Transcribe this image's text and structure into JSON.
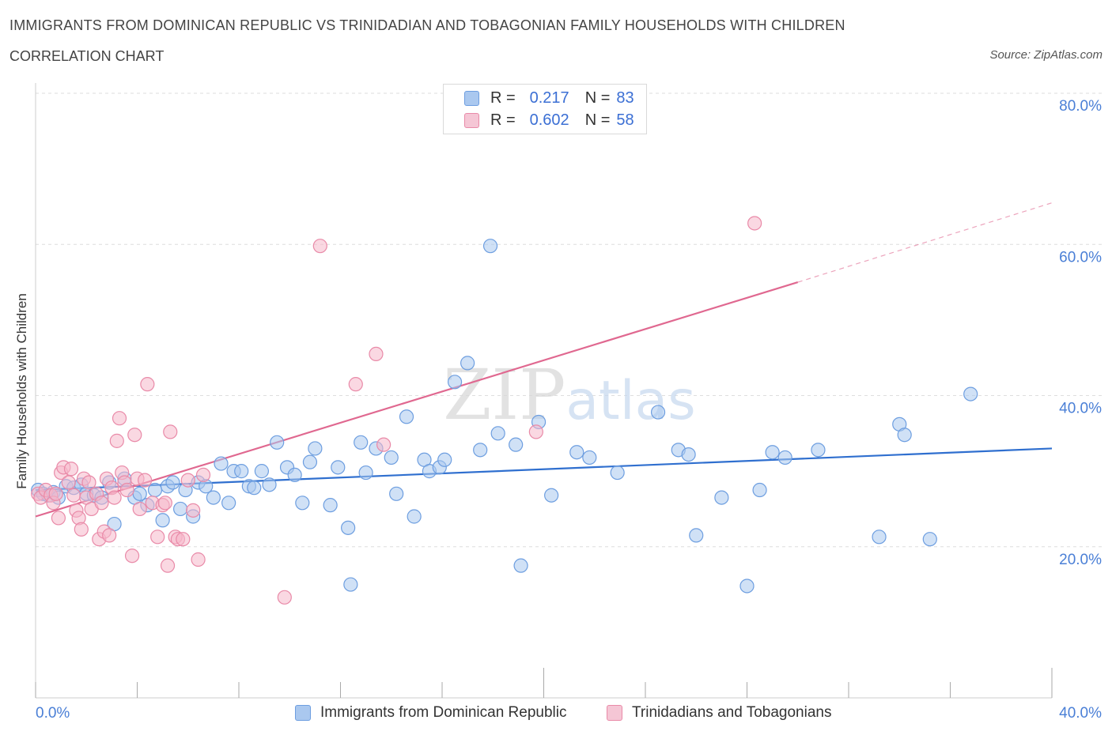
{
  "title": "IMMIGRANTS FROM DOMINICAN REPUBLIC VS TRINIDADIAN AND TOBAGONIAN FAMILY HOUSEHOLDS WITH CHILDREN",
  "subtitle": "CORRELATION CHART",
  "source": "Source: ZipAtlas.com",
  "watermark": "ZIPatlas",
  "legend": {
    "r_label": "R =",
    "n_label": "N =",
    "rows": [
      {
        "r": "0.217",
        "n": "83"
      },
      {
        "r": "0.602",
        "n": "58"
      }
    ]
  },
  "colors": {
    "blue_fill": "#aac8ef",
    "blue_stroke": "#6d9ee0",
    "blue_line": "#2f6fcf",
    "pink_fill": "#f5b8cb",
    "pink_stroke": "#e98aa8",
    "pink_line": "#e06890",
    "axis_text": "#4a7fd6"
  },
  "chart_data": {
    "type": "scatter",
    "title": "IMMIGRANTS FROM DOMINICAN REPUBLIC VS TRINIDADIAN AND TOBAGONIAN FAMILY HOUSEHOLDS WITH CHILDREN",
    "xlabel": "",
    "ylabel": "Family Households with Children",
    "xlim": [
      0,
      40
    ],
    "ylim": [
      0,
      80
    ],
    "x_tick_labels": [
      "0.0%",
      "40.0%"
    ],
    "y_tick_labels": [
      "20.0%",
      "40.0%",
      "60.0%",
      "80.0%"
    ],
    "y_ticks": [
      20,
      40,
      60,
      80
    ],
    "series": [
      {
        "name": "Immigrants from Dominican Republic",
        "color": "blue",
        "r": 0.217,
        "n": 83,
        "trend": {
          "x": [
            0,
            40
          ],
          "y": [
            27.5,
            33.0
          ],
          "dashed_to": null
        },
        "points": [
          [
            0.1,
            27.5
          ],
          [
            0.3,
            27.0
          ],
          [
            0.5,
            26.8
          ],
          [
            0.7,
            27.2
          ],
          [
            0.9,
            26.5
          ],
          [
            1.2,
            28.0
          ],
          [
            1.5,
            27.8
          ],
          [
            1.8,
            28.2
          ],
          [
            2.0,
            27.0
          ],
          [
            2.3,
            26.8
          ],
          [
            2.6,
            26.5
          ],
          [
            2.9,
            28.5
          ],
          [
            3.1,
            23.0
          ],
          [
            3.5,
            29.0
          ],
          [
            3.9,
            26.5
          ],
          [
            4.1,
            27.0
          ],
          [
            4.4,
            25.5
          ],
          [
            4.7,
            27.5
          ],
          [
            5.0,
            23.5
          ],
          [
            5.2,
            28.0
          ],
          [
            5.4,
            28.5
          ],
          [
            5.7,
            25.0
          ],
          [
            5.9,
            27.5
          ],
          [
            6.2,
            24.0
          ],
          [
            6.4,
            28.5
          ],
          [
            6.7,
            28.0
          ],
          [
            7.0,
            26.5
          ],
          [
            7.3,
            31.0
          ],
          [
            7.6,
            25.8
          ],
          [
            7.8,
            30.0
          ],
          [
            8.1,
            30.0
          ],
          [
            8.4,
            28.0
          ],
          [
            8.6,
            27.8
          ],
          [
            8.9,
            30.0
          ],
          [
            9.2,
            28.2
          ],
          [
            9.5,
            33.8
          ],
          [
            9.9,
            30.5
          ],
          [
            10.2,
            29.5
          ],
          [
            10.5,
            25.8
          ],
          [
            10.8,
            31.2
          ],
          [
            11.0,
            33.0
          ],
          [
            11.6,
            25.5
          ],
          [
            11.9,
            30.5
          ],
          [
            12.3,
            22.5
          ],
          [
            12.4,
            15.0
          ],
          [
            12.8,
            33.8
          ],
          [
            13.0,
            29.8
          ],
          [
            13.4,
            33.0
          ],
          [
            14.0,
            31.8
          ],
          [
            14.2,
            27.0
          ],
          [
            14.6,
            37.2
          ],
          [
            14.9,
            24.0
          ],
          [
            15.3,
            31.5
          ],
          [
            15.5,
            30.0
          ],
          [
            15.9,
            30.5
          ],
          [
            16.1,
            31.5
          ],
          [
            16.5,
            41.8
          ],
          [
            17.0,
            44.3
          ],
          [
            17.5,
            32.8
          ],
          [
            17.9,
            59.8
          ],
          [
            18.2,
            35.0
          ],
          [
            18.9,
            33.5
          ],
          [
            19.1,
            17.5
          ],
          [
            19.8,
            36.5
          ],
          [
            20.3,
            26.8
          ],
          [
            21.3,
            32.5
          ],
          [
            21.8,
            31.8
          ],
          [
            22.9,
            29.8
          ],
          [
            24.5,
            37.8
          ],
          [
            25.3,
            32.8
          ],
          [
            25.7,
            32.2
          ],
          [
            26.0,
            21.5
          ],
          [
            27.0,
            26.5
          ],
          [
            28.0,
            14.8
          ],
          [
            28.5,
            27.5
          ],
          [
            29.0,
            32.5
          ],
          [
            29.5,
            31.8
          ],
          [
            30.8,
            32.8
          ],
          [
            33.2,
            21.3
          ],
          [
            34.0,
            36.2
          ],
          [
            34.2,
            34.8
          ],
          [
            35.2,
            21.0
          ],
          [
            36.8,
            40.2
          ]
        ]
      },
      {
        "name": "Trinidadians and Tobagonians",
        "color": "pink",
        "r": 0.602,
        "n": 58,
        "trend": {
          "x": [
            0,
            30
          ],
          "y": [
            24.0,
            55.0
          ],
          "dashed_to": [
            40,
            65.5
          ]
        },
        "points": [
          [
            0.1,
            27.0
          ],
          [
            0.2,
            26.5
          ],
          [
            0.4,
            27.5
          ],
          [
            0.6,
            26.8
          ],
          [
            0.7,
            25.8
          ],
          [
            0.8,
            27.0
          ],
          [
            0.9,
            23.8
          ],
          [
            1.0,
            29.8
          ],
          [
            1.1,
            30.5
          ],
          [
            1.3,
            28.5
          ],
          [
            1.4,
            30.3
          ],
          [
            1.5,
            26.8
          ],
          [
            1.6,
            24.8
          ],
          [
            1.7,
            23.8
          ],
          [
            1.8,
            22.3
          ],
          [
            1.9,
            29.0
          ],
          [
            2.0,
            26.5
          ],
          [
            2.1,
            28.5
          ],
          [
            2.2,
            25.0
          ],
          [
            2.4,
            27.0
          ],
          [
            2.5,
            21.0
          ],
          [
            2.6,
            25.8
          ],
          [
            2.7,
            22.0
          ],
          [
            2.8,
            29.0
          ],
          [
            2.9,
            21.5
          ],
          [
            3.0,
            27.8
          ],
          [
            3.1,
            26.5
          ],
          [
            3.2,
            34.0
          ],
          [
            3.3,
            37.0
          ],
          [
            3.4,
            29.8
          ],
          [
            3.5,
            28.5
          ],
          [
            3.6,
            27.5
          ],
          [
            3.8,
            18.8
          ],
          [
            3.9,
            34.8
          ],
          [
            4.0,
            29.0
          ],
          [
            4.1,
            25.0
          ],
          [
            4.3,
            28.8
          ],
          [
            4.4,
            41.5
          ],
          [
            4.6,
            25.8
          ],
          [
            4.8,
            21.3
          ],
          [
            5.0,
            25.5
          ],
          [
            5.1,
            25.8
          ],
          [
            5.2,
            17.5
          ],
          [
            5.3,
            35.2
          ],
          [
            5.5,
            21.3
          ],
          [
            5.6,
            21.0
          ],
          [
            5.8,
            21.0
          ],
          [
            6.0,
            28.8
          ],
          [
            6.2,
            24.8
          ],
          [
            6.4,
            18.3
          ],
          [
            6.6,
            29.5
          ],
          [
            9.8,
            13.3
          ],
          [
            11.2,
            59.8
          ],
          [
            12.6,
            41.5
          ],
          [
            13.4,
            45.5
          ],
          [
            13.7,
            33.5
          ],
          [
            19.7,
            35.2
          ],
          [
            28.3,
            62.8
          ]
        ]
      }
    ]
  },
  "bottom_legend": [
    {
      "label": "Immigrants from Dominican Republic"
    },
    {
      "label": "Trinidadians and Tobagonians"
    }
  ]
}
